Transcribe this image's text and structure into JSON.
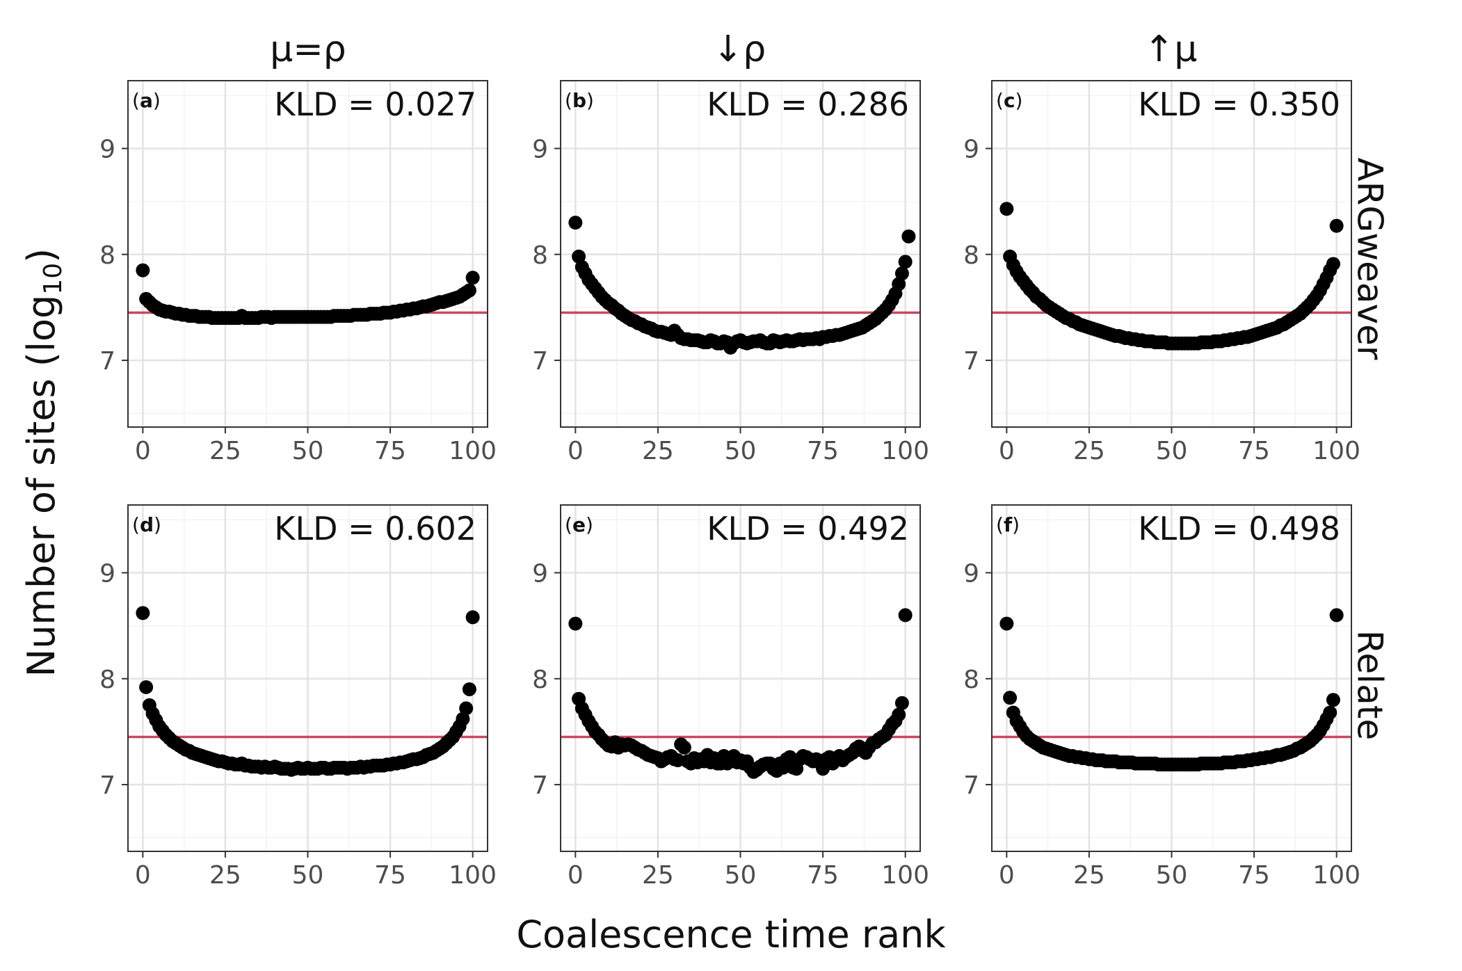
{
  "chart_data": {
    "type": "scatter",
    "xlabel": "Coalescence time rank",
    "ylabel_main": "Number of sites (log",
    "ylabel_sub": "10",
    "ylabel_tail": ")",
    "x_ticks": [
      0,
      25,
      50,
      75,
      100
    ],
    "y_ticks": [
      7,
      8,
      9
    ],
    "xlim": [
      -4.5,
      104.5
    ],
    "ylim": [
      6.37,
      9.64
    ],
    "reference_line": {
      "y": 7.45,
      "color": "#c9485d"
    },
    "point_color": "#000000",
    "grid": true,
    "columns": [
      "μ=ρ",
      "↓ρ",
      "↑μ"
    ],
    "rows": [
      "ARGweaver",
      "Relate"
    ],
    "panels": [
      {
        "tag": "a",
        "kld_text": "KLD = 0.027",
        "col": 0,
        "row": 0,
        "y": [
          7.85,
          7.58,
          7.55,
          7.52,
          7.5,
          7.48,
          7.47,
          7.46,
          7.46,
          7.45,
          7.44,
          7.44,
          7.43,
          7.43,
          7.42,
          7.42,
          7.42,
          7.41,
          7.41,
          7.41,
          7.41,
          7.4,
          7.4,
          7.4,
          7.4,
          7.4,
          7.4,
          7.4,
          7.4,
          7.4,
          7.42,
          7.4,
          7.4,
          7.4,
          7.4,
          7.4,
          7.41,
          7.41,
          7.41,
          7.4,
          7.41,
          7.41,
          7.41,
          7.41,
          7.41,
          7.41,
          7.41,
          7.41,
          7.41,
          7.41,
          7.41,
          7.41,
          7.41,
          7.41,
          7.41,
          7.41,
          7.41,
          7.41,
          7.42,
          7.42,
          7.42,
          7.42,
          7.42,
          7.42,
          7.43,
          7.43,
          7.43,
          7.43,
          7.43,
          7.44,
          7.44,
          7.44,
          7.44,
          7.45,
          7.45,
          7.45,
          7.46,
          7.46,
          7.47,
          7.47,
          7.48,
          7.48,
          7.49,
          7.49,
          7.5,
          7.51,
          7.51,
          7.52,
          7.53,
          7.54,
          7.55,
          7.55,
          7.56,
          7.57,
          7.58,
          7.59,
          7.6,
          7.62,
          7.64,
          7.66,
          7.78
        ]
      },
      {
        "tag": "b",
        "kld_text": "KLD = 0.286",
        "col": 1,
        "row": 0,
        "y": [
          8.3,
          7.98,
          7.88,
          7.82,
          7.76,
          7.72,
          7.68,
          7.64,
          7.6,
          7.57,
          7.54,
          7.52,
          7.49,
          7.47,
          7.44,
          7.42,
          7.4,
          7.38,
          7.37,
          7.35,
          7.34,
          7.32,
          7.31,
          7.3,
          7.28,
          7.27,
          7.27,
          7.26,
          7.25,
          7.24,
          7.28,
          7.24,
          7.21,
          7.2,
          7.2,
          7.19,
          7.19,
          7.19,
          7.18,
          7.17,
          7.17,
          7.19,
          7.18,
          7.16,
          7.16,
          7.18,
          7.17,
          7.12,
          7.16,
          7.18,
          7.19,
          7.17,
          7.16,
          7.17,
          7.18,
          7.18,
          7.19,
          7.17,
          7.16,
          7.16,
          7.19,
          7.18,
          7.17,
          7.18,
          7.19,
          7.18,
          7.18,
          7.19,
          7.2,
          7.19,
          7.2,
          7.2,
          7.2,
          7.21,
          7.2,
          7.22,
          7.22,
          7.23,
          7.23,
          7.24,
          7.24,
          7.25,
          7.26,
          7.27,
          7.28,
          7.29,
          7.3,
          7.31,
          7.33,
          7.35,
          7.37,
          7.39,
          7.42,
          7.45,
          7.48,
          7.52,
          7.57,
          7.63,
          7.72,
          7.82,
          7.93,
          8.17
        ]
      },
      {
        "tag": "c",
        "kld_text": "KLD = 0.350",
        "col": 2,
        "row": 0,
        "y": [
          8.43,
          7.98,
          7.9,
          7.84,
          7.79,
          7.75,
          7.71,
          7.67,
          7.64,
          7.6,
          7.58,
          7.55,
          7.52,
          7.5,
          7.48,
          7.46,
          7.44,
          7.42,
          7.4,
          7.39,
          7.37,
          7.36,
          7.34,
          7.33,
          7.32,
          7.31,
          7.3,
          7.29,
          7.28,
          7.27,
          7.26,
          7.25,
          7.24,
          7.23,
          7.23,
          7.22,
          7.21,
          7.21,
          7.2,
          7.2,
          7.19,
          7.19,
          7.18,
          7.18,
          7.18,
          7.17,
          7.17,
          7.17,
          7.17,
          7.16,
          7.16,
          7.16,
          7.16,
          7.16,
          7.16,
          7.16,
          7.16,
          7.16,
          7.16,
          7.17,
          7.17,
          7.17,
          7.17,
          7.18,
          7.18,
          7.18,
          7.19,
          7.19,
          7.2,
          7.2,
          7.21,
          7.21,
          7.22,
          7.22,
          7.23,
          7.24,
          7.25,
          7.26,
          7.27,
          7.28,
          7.29,
          7.3,
          7.31,
          7.33,
          7.34,
          7.36,
          7.38,
          7.4,
          7.42,
          7.44,
          7.47,
          7.5,
          7.53,
          7.57,
          7.61,
          7.66,
          7.72,
          7.78,
          7.85,
          7.91,
          8.27
        ]
      },
      {
        "tag": "d",
        "kld_text": "KLD = 0.602",
        "col": 0,
        "row": 1,
        "y": [
          8.62,
          7.92,
          7.75,
          7.67,
          7.61,
          7.55,
          7.51,
          7.47,
          7.44,
          7.41,
          7.39,
          7.37,
          7.35,
          7.33,
          7.32,
          7.3,
          7.29,
          7.28,
          7.27,
          7.26,
          7.25,
          7.24,
          7.23,
          7.22,
          7.22,
          7.21,
          7.2,
          7.2,
          7.19,
          7.19,
          7.2,
          7.18,
          7.18,
          7.17,
          7.17,
          7.17,
          7.16,
          7.17,
          7.16,
          7.16,
          7.17,
          7.16,
          7.15,
          7.15,
          7.15,
          7.14,
          7.15,
          7.16,
          7.15,
          7.15,
          7.16,
          7.15,
          7.15,
          7.15,
          7.16,
          7.16,
          7.15,
          7.15,
          7.16,
          7.16,
          7.16,
          7.16,
          7.15,
          7.16,
          7.16,
          7.16,
          7.17,
          7.16,
          7.17,
          7.17,
          7.18,
          7.18,
          7.18,
          7.18,
          7.19,
          7.19,
          7.2,
          7.2,
          7.21,
          7.21,
          7.22,
          7.23,
          7.24,
          7.24,
          7.25,
          7.26,
          7.28,
          7.29,
          7.3,
          7.32,
          7.34,
          7.36,
          7.39,
          7.42,
          7.45,
          7.5,
          7.55,
          7.62,
          7.72,
          7.9,
          8.58
        ]
      },
      {
        "tag": "e",
        "kld_text": "KLD = 0.492",
        "col": 1,
        "row": 1,
        "y": [
          8.52,
          7.81,
          7.72,
          7.66,
          7.6,
          7.55,
          7.5,
          7.47,
          7.43,
          7.4,
          7.37,
          7.36,
          7.4,
          7.35,
          7.38,
          7.37,
          7.38,
          7.37,
          7.35,
          7.33,
          7.32,
          7.3,
          7.28,
          7.27,
          7.26,
          7.25,
          7.22,
          7.24,
          7.26,
          7.27,
          7.24,
          7.23,
          7.38,
          7.35,
          7.22,
          7.2,
          7.25,
          7.21,
          7.24,
          7.22,
          7.28,
          7.21,
          7.25,
          7.2,
          7.2,
          7.27,
          7.2,
          7.22,
          7.27,
          7.21,
          7.23,
          7.2,
          7.22,
          7.16,
          7.12,
          7.14,
          7.17,
          7.19,
          7.2,
          7.2,
          7.15,
          7.13,
          7.2,
          7.16,
          7.24,
          7.26,
          7.16,
          7.15,
          7.24,
          7.27,
          7.26,
          7.24,
          7.22,
          7.24,
          7.21,
          7.15,
          7.24,
          7.26,
          7.2,
          7.24,
          7.27,
          7.23,
          7.26,
          7.28,
          7.3,
          7.34,
          7.36,
          7.32,
          7.3,
          7.35,
          7.39,
          7.4,
          7.43,
          7.45,
          7.47,
          7.52,
          7.57,
          7.6,
          7.66,
          7.77,
          8.6
        ]
      },
      {
        "tag": "f",
        "kld_text": "KLD = 0.498",
        "col": 2,
        "row": 1,
        "y": [
          8.52,
          7.82,
          7.68,
          7.6,
          7.55,
          7.5,
          7.46,
          7.43,
          7.41,
          7.39,
          7.37,
          7.35,
          7.34,
          7.33,
          7.32,
          7.31,
          7.3,
          7.29,
          7.28,
          7.27,
          7.27,
          7.26,
          7.26,
          7.25,
          7.25,
          7.24,
          7.24,
          7.23,
          7.23,
          7.23,
          7.22,
          7.22,
          7.22,
          7.22,
          7.21,
          7.21,
          7.21,
          7.21,
          7.21,
          7.2,
          7.2,
          7.2,
          7.2,
          7.2,
          7.2,
          7.2,
          7.19,
          7.19,
          7.19,
          7.19,
          7.19,
          7.19,
          7.19,
          7.19,
          7.19,
          7.19,
          7.19,
          7.19,
          7.19,
          7.2,
          7.2,
          7.2,
          7.2,
          7.2,
          7.2,
          7.2,
          7.21,
          7.21,
          7.21,
          7.21,
          7.22,
          7.22,
          7.22,
          7.23,
          7.23,
          7.24,
          7.24,
          7.25,
          7.25,
          7.26,
          7.26,
          7.27,
          7.28,
          7.28,
          7.29,
          7.3,
          7.31,
          7.32,
          7.34,
          7.35,
          7.37,
          7.39,
          7.41,
          7.44,
          7.47,
          7.51,
          7.56,
          7.62,
          7.68,
          7.8,
          8.6
        ]
      }
    ]
  }
}
